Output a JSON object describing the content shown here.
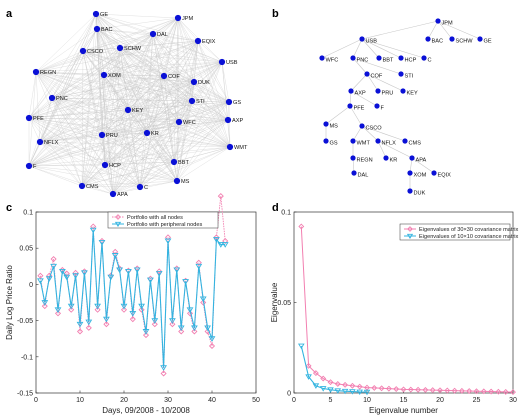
{
  "panel_labels": {
    "a": "a",
    "b": "b",
    "c": "c",
    "d": "d"
  },
  "colors": {
    "node": "#0a10d6",
    "edge": "#c8c8c8",
    "all": "#f27fb0",
    "peripheral": "#33b4e0"
  },
  "chart_data": [
    {
      "type": "network",
      "panel": "a",
      "nodes": [
        "GE",
        "JPM",
        "BAC",
        "DAL",
        "EQIX",
        "CSCO",
        "SCHW",
        "USB",
        "REGN",
        "XOM",
        "COF",
        "DUK",
        "PNC",
        "STI",
        "GS",
        "KEY",
        "PFE",
        "WFC",
        "AXP",
        "NFLX",
        "PRU",
        "KR",
        "WMT",
        "F",
        "HCP",
        "BBT",
        "MS",
        "CMS",
        "C",
        "APA"
      ],
      "edges": "complete graph (all pairs connected)"
    },
    {
      "type": "tree",
      "panel": "b",
      "root": "JPM",
      "nodes": [
        "JPM",
        "USB",
        "BAC",
        "SCHW",
        "GE",
        "WFC",
        "PNC",
        "BBT",
        "HCP",
        "C",
        "COF",
        "STI",
        "AXP",
        "PRU",
        "KEY",
        "PFE",
        "F",
        "MS",
        "CSCO",
        "GS",
        "WMT",
        "NFLX",
        "CMS",
        "REGN",
        "KR",
        "APA",
        "DAL",
        "XOM",
        "EQIX",
        "DUK"
      ],
      "edges": [
        [
          "JPM",
          "USB"
        ],
        [
          "JPM",
          "BAC"
        ],
        [
          "JPM",
          "SCHW"
        ],
        [
          "JPM",
          "GE"
        ],
        [
          "USB",
          "WFC"
        ],
        [
          "USB",
          "PNC"
        ],
        [
          "USB",
          "BBT"
        ],
        [
          "USB",
          "HCP"
        ],
        [
          "USB",
          "C"
        ],
        [
          "PNC",
          "COF"
        ],
        [
          "PNC",
          "STI"
        ],
        [
          "COF",
          "AXP"
        ],
        [
          "COF",
          "PRU"
        ],
        [
          "COF",
          "KEY"
        ],
        [
          "AXP",
          "PFE"
        ],
        [
          "AXP",
          "F"
        ],
        [
          "PFE",
          "MS"
        ],
        [
          "PFE",
          "CSCO"
        ],
        [
          "MS",
          "GS"
        ],
        [
          "CSCO",
          "WMT"
        ],
        [
          "CSCO",
          "NFLX"
        ],
        [
          "CSCO",
          "CMS"
        ],
        [
          "WMT",
          "REGN"
        ],
        [
          "NFLX",
          "KR"
        ],
        [
          "NFLX",
          "APA"
        ],
        [
          "REGN",
          "DAL"
        ],
        [
          "APA",
          "XOM"
        ],
        [
          "APA",
          "EQIX"
        ],
        [
          "XOM",
          "DUK"
        ]
      ]
    },
    {
      "type": "line",
      "panel": "c",
      "xlabel": "Days, 09/2008 - 10/2008",
      "ylabel": "Daily Log Price Ratio",
      "xlim": [
        0,
        50
      ],
      "ylim": [
        -0.15,
        0.1
      ],
      "xticks": [
        "0",
        "10",
        "20",
        "30",
        "40",
        "50"
      ],
      "yticks": [
        "0.1",
        "0.05",
        "0",
        "-0.05",
        "-0.1",
        "-0.15"
      ],
      "legend_position": "top-right",
      "x": [
        1,
        2,
        3,
        4,
        5,
        6,
        7,
        8,
        9,
        10,
        11,
        12,
        13,
        14,
        15,
        16,
        17,
        18,
        19,
        20,
        21,
        22,
        23,
        24,
        25,
        26,
        27,
        28,
        29,
        30,
        31,
        32,
        33,
        34,
        35,
        36,
        37,
        38,
        39,
        40,
        41,
        42,
        43
      ],
      "series": [
        {
          "name": "Portfolio with all nodes",
          "marker": "diamond",
          "values": [
            0.012,
            -0.03,
            0.012,
            0.035,
            -0.04,
            0.02,
            0.015,
            -0.035,
            0.016,
            -0.065,
            0.018,
            -0.06,
            0.08,
            -0.035,
            0.06,
            -0.055,
            0.012,
            0.045,
            0.022,
            -0.035,
            0.019,
            -0.048,
            0.022,
            -0.035,
            -0.07,
            0.008,
            -0.055,
            0.018,
            -0.123,
            0.065,
            -0.055,
            0.022,
            -0.065,
            0.005,
            -0.04,
            -0.065,
            0.03,
            -0.025,
            -0.065,
            -0.085,
            0.065,
            0.122,
            0.06
          ]
        },
        {
          "name": "Portfolio with peripheral nodes",
          "marker": "triangle",
          "values": [
            0.005,
            -0.025,
            0.008,
            0.025,
            -0.035,
            0.018,
            0.01,
            -0.03,
            0.012,
            -0.055,
            0.016,
            -0.052,
            0.075,
            -0.03,
            0.058,
            -0.048,
            0.01,
            0.04,
            0.02,
            -0.03,
            0.018,
            -0.04,
            0.02,
            -0.03,
            -0.065,
            0.006,
            -0.05,
            0.015,
            -0.115,
            0.06,
            -0.05,
            0.02,
            -0.06,
            0.004,
            -0.035,
            -0.06,
            0.025,
            -0.02,
            -0.06,
            -0.075,
            0.062,
            0.055,
            0.055
          ]
        }
      ]
    },
    {
      "type": "line",
      "panel": "d",
      "xlabel": "Eigenvalue number",
      "ylabel": "Eigenvalue",
      "xlim": [
        0,
        30
      ],
      "ylim": [
        0,
        0.1
      ],
      "xticks": [
        "0",
        "5",
        "10",
        "15",
        "20",
        "25",
        "30"
      ],
      "yticks": [
        "0.1",
        "0.05",
        "0"
      ],
      "legend_position": "top-right",
      "series": [
        {
          "name": "Eigenvalues of 30×30 covariance matrix",
          "marker": "diamond",
          "x": [
            1,
            2,
            3,
            4,
            5,
            6,
            7,
            8,
            9,
            10,
            11,
            12,
            13,
            14,
            15,
            16,
            17,
            18,
            19,
            20,
            21,
            22,
            23,
            24,
            25,
            26,
            27,
            28,
            29,
            30
          ],
          "values": [
            0.092,
            0.015,
            0.011,
            0.008,
            0.006,
            0.005,
            0.0045,
            0.004,
            0.0035,
            0.003,
            0.0028,
            0.0026,
            0.0024,
            0.0022,
            0.002,
            0.0019,
            0.0018,
            0.0017,
            0.0016,
            0.0015,
            0.0014,
            0.0013,
            0.0012,
            0.0011,
            0.001,
            0.0009,
            0.0008,
            0.0007,
            0.0006,
            0.0005
          ]
        },
        {
          "name": "Eigenvalues of 10×10 covariance matrix",
          "marker": "triangle",
          "x": [
            1,
            2,
            3,
            4,
            5,
            6,
            7,
            8,
            9,
            10
          ],
          "values": [
            0.026,
            0.009,
            0.004,
            0.0025,
            0.0018,
            0.0013,
            0.001,
            0.0008,
            0.0006,
            0.0005
          ]
        }
      ]
    }
  ]
}
